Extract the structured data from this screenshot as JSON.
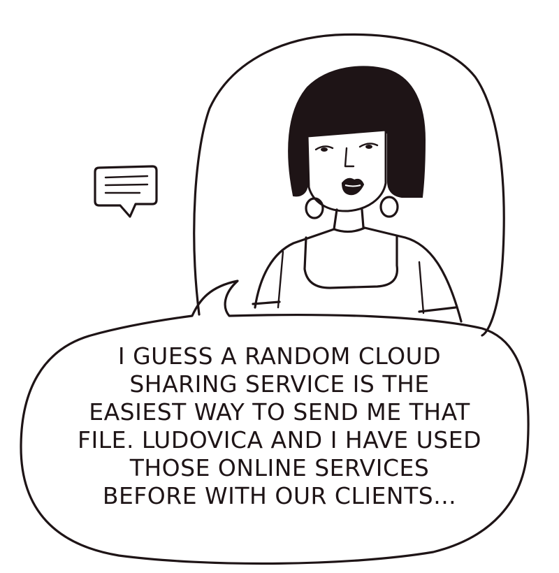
{
  "panel": {
    "icons": [
      "chat-message-icon"
    ],
    "speech_lines": [
      "I GUESS A RANDOM CLOUD",
      "SHARING SERVICE IS THE",
      "EASIEST WAY TO SEND ME THAT",
      "FILE. LUDOVICA AND I HAVE USED",
      "THOSE ONLINE SERVICES",
      "BEFORE WITH OUR CLIENTS..."
    ]
  },
  "colors": {
    "ink": "#1e1416",
    "paper": "#ffffff"
  }
}
